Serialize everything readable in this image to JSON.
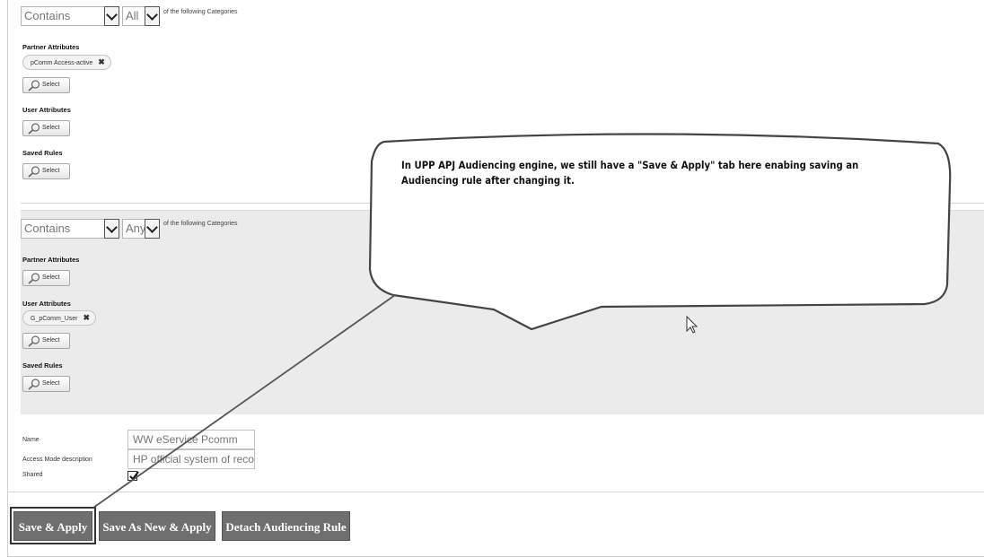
{
  "group1": {
    "condition_select": "Contains",
    "quantifier_select": "All",
    "following_text": "of the following Categories",
    "partner_label": "Partner Attributes",
    "partner_tag": "pComm Access-active",
    "user_label": "User Attributes",
    "saved_label": "Saved Rules",
    "select_label": "Select"
  },
  "group2": {
    "condition_select": "Contains",
    "quantifier_select": "Any",
    "following_text": "of the following Categories",
    "partner_label": "Partner Attributes",
    "user_label": "User Attributes",
    "user_tag": "G_pComm_User",
    "saved_label": "Saved Rules",
    "select_label": "Select"
  },
  "form": {
    "name_label": "Name",
    "name_value": "WW eService Pcomm",
    "desc_label": "Access Mode description",
    "desc_value": "HP official system of recor",
    "shared_label": "Shared",
    "shared_checked": true
  },
  "actions": {
    "save_apply": "Save & Apply",
    "save_new_apply": "Save As New & Apply",
    "detach": "Detach Audiencing Rule"
  },
  "callout": {
    "text": "In UPP APJ Audiencing engine, we still have a \"Save & Apply\" tab here enabing saving an Audiencing rule after changing it."
  },
  "icons": {
    "select_icon": "magnifier-icon",
    "remove_icon": "remove-x-icon",
    "cursor": "mouse-pointer-icon"
  }
}
